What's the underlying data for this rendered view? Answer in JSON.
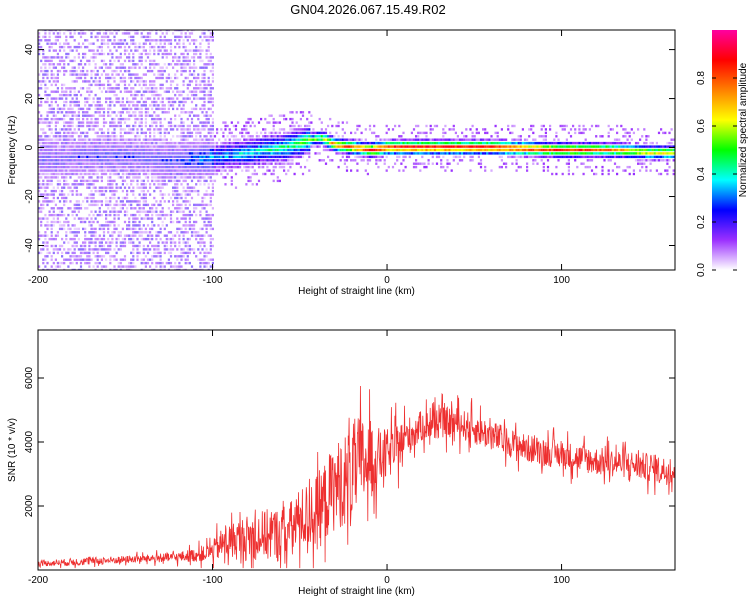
{
  "title": "GN04.2026.067.15.49.R02",
  "chart_data": [
    {
      "type": "heatmap",
      "id": "spectrogram",
      "title": "",
      "xlabel": "Height of straight line (km)",
      "ylabel": "Frequency (Hz)",
      "xlim": [
        -200,
        165
      ],
      "ylim": [
        -50,
        48
      ],
      "x_ticks": [
        -200,
        -100,
        0,
        100
      ],
      "y_ticks": [
        -40,
        -20,
        0,
        20,
        40
      ],
      "colorbar": {
        "label": "Normalized spectral amplitude",
        "range": [
          0,
          1
        ],
        "ticks": [
          0.0,
          0.2,
          0.4,
          0.6,
          0.8
        ],
        "tick_labels": [
          "0.0",
          "0.2",
          "0.4",
          "0.6",
          "0.8"
        ],
        "colormap": [
          "#ffffff",
          "#9b30ff",
          "#0000ff",
          "#00ffff",
          "#00ff00",
          "#ffff00",
          "#ff8000",
          "#ff0000",
          "#ff00a0"
        ]
      },
      "ridge": {
        "x": [
          -200,
          -180,
          -160,
          -140,
          -120,
          -100,
          -80,
          -60,
          -45,
          -38,
          -30,
          -20,
          -10,
          0,
          20,
          60,
          100,
          130,
          150,
          165
        ],
        "frequency": [
          -5,
          -4,
          -3,
          -4,
          -5,
          -4,
          -2,
          0,
          3,
          4,
          1,
          0,
          -1,
          0,
          0,
          0,
          -1,
          -1,
          -2,
          -2
        ],
        "amplitude": [
          0.15,
          0.15,
          0.18,
          0.16,
          0.2,
          0.3,
          0.4,
          0.45,
          0.55,
          0.6,
          0.8,
          0.85,
          0.9,
          0.95,
          0.98,
          0.95,
          0.85,
          0.75,
          0.7,
          0.7
        ]
      }
    },
    {
      "type": "line",
      "id": "snr",
      "title": "",
      "xlabel": "Height of straight line (km)",
      "ylabel": "SNR (10 * v/v)",
      "xlim": [
        -200,
        165
      ],
      "ylim": [
        0,
        7500
      ],
      "x_ticks": [
        -200,
        -100,
        0,
        100
      ],
      "y_ticks": [
        2000,
        4000,
        6000
      ],
      "series": [
        {
          "name": "SNR",
          "color": "#ee3030",
          "x": [
            -200,
            -180,
            -160,
            -140,
            -120,
            -105,
            -100,
            -95,
            -90,
            -80,
            -70,
            -60,
            -55,
            -50,
            -45,
            -40,
            -35,
            -30,
            -25,
            -20,
            -18,
            -15,
            -10,
            -5,
            0,
            5,
            10,
            15,
            20,
            30,
            40,
            50,
            60,
            70,
            80,
            90,
            100,
            110,
            120,
            130,
            140,
            150,
            160,
            165
          ],
          "center": [
            200,
            250,
            300,
            350,
            400,
            500,
            600,
            800,
            900,
            1000,
            1100,
            1100,
            1300,
            1600,
            1700,
            1800,
            2200,
            2600,
            2800,
            3000,
            3200,
            3300,
            3500,
            3500,
            3600,
            3800,
            4100,
            4300,
            4500,
            4600,
            4600,
            4400,
            4200,
            4000,
            3800,
            3700,
            3600,
            3500,
            3400,
            3350,
            3300,
            3200,
            3100,
            3100
          ],
          "spread": [
            100,
            150,
            150,
            150,
            200,
            300,
            400,
            600,
            700,
            900,
            1000,
            1100,
            1100,
            1200,
            1300,
            1500,
            1600,
            1700,
            1800,
            1900,
            2000,
            1900,
            1500,
            1200,
            1000,
            900,
            800,
            700,
            600,
            600,
            600,
            600,
            600,
            550,
            550,
            550,
            550,
            550,
            550,
            550,
            550,
            550,
            550,
            550
          ]
        }
      ]
    }
  ]
}
